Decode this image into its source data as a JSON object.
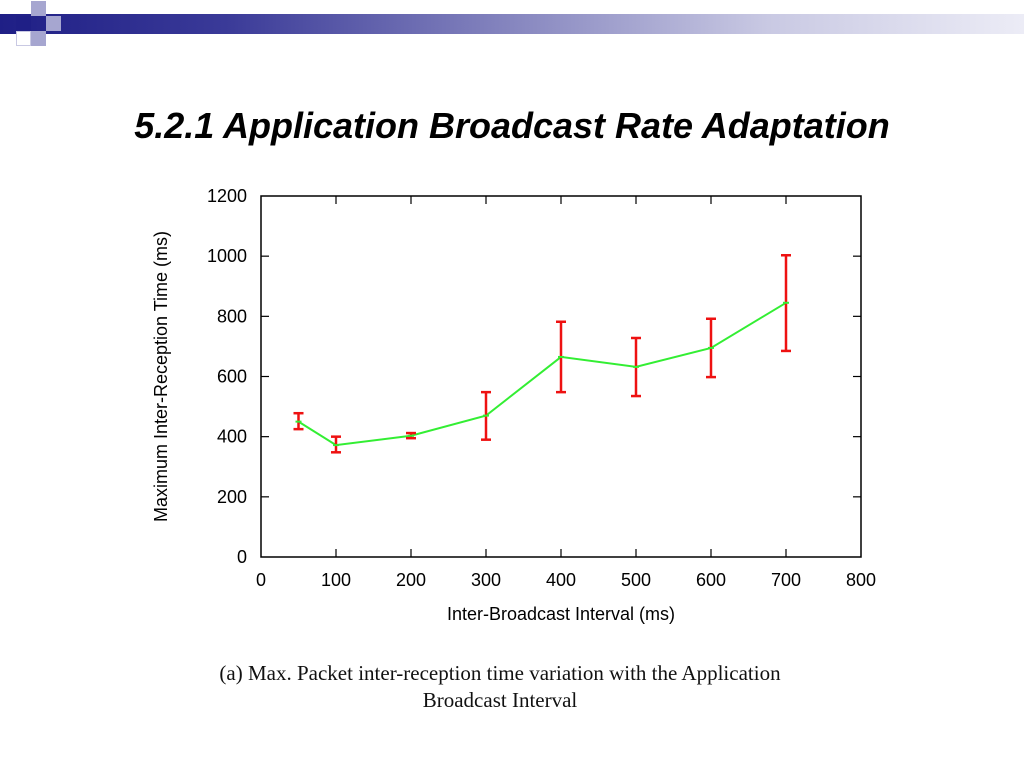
{
  "slide": {
    "title": "5.2.1 Application Broadcast Rate Adaptation",
    "caption_line1": "(a) Max. Packet inter-reception time variation with the Application",
    "caption_line2": "Broadcast Interval"
  },
  "colors": {
    "header_dark": "#1f1f86",
    "header_light": "#ececf6",
    "deco_square_dark": "#1f1f86",
    "deco_square_light": "#a6a6d0",
    "line": "#33ee33",
    "error_bar": "#ee1111"
  },
  "chart_data": {
    "type": "line",
    "xlabel": "Inter-Broadcast Interval (ms)",
    "ylabel": "Maximum Inter-Reception Time (ms)",
    "xlim": [
      0,
      800
    ],
    "ylim": [
      0,
      1200
    ],
    "xticks": [
      "0",
      "100",
      "200",
      "300",
      "400",
      "500",
      "600",
      "700",
      "800"
    ],
    "yticks": [
      "0",
      "200",
      "400",
      "600",
      "800",
      "1000",
      "1200"
    ],
    "grid": false,
    "points": [
      {
        "x": 50,
        "y": 450,
        "err_low": 425,
        "err_high": 478
      },
      {
        "x": 100,
        "y": 372,
        "err_low": 348,
        "err_high": 400
      },
      {
        "x": 200,
        "y": 403,
        "err_low": 395,
        "err_high": 412
      },
      {
        "x": 300,
        "y": 470,
        "err_low": 390,
        "err_high": 548
      },
      {
        "x": 400,
        "y": 665,
        "err_low": 548,
        "err_high": 782
      },
      {
        "x": 500,
        "y": 632,
        "err_low": 535,
        "err_high": 728
      },
      {
        "x": 600,
        "y": 695,
        "err_low": 598,
        "err_high": 792
      },
      {
        "x": 700,
        "y": 845,
        "err_low": 685,
        "err_high": 1003
      }
    ]
  }
}
